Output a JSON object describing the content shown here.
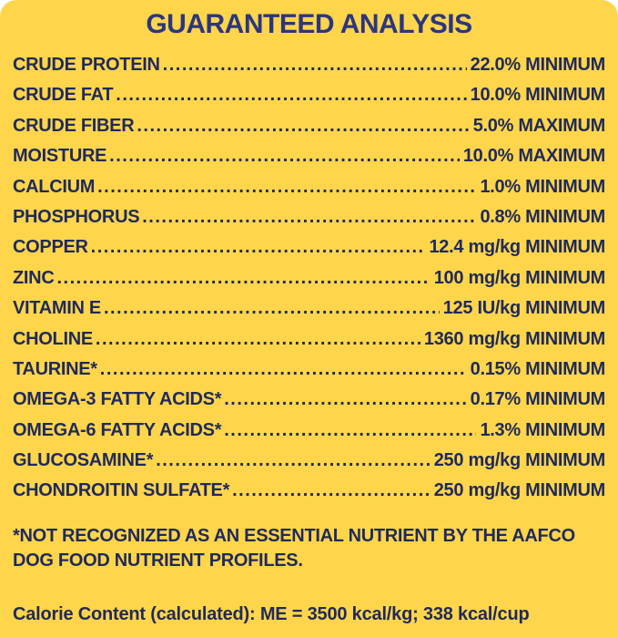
{
  "panel": {
    "title": "GUARANTEED ANALYSIS",
    "rows": [
      {
        "label": "CRUDE PROTEIN",
        "value": "22.0% MINIMUM"
      },
      {
        "label": "CRUDE FAT",
        "value": "10.0% MINIMUM"
      },
      {
        "label": "CRUDE FIBER",
        "value": "5.0% MAXIMUM"
      },
      {
        "label": "MOISTURE",
        "value": "10.0% MAXIMUM"
      },
      {
        "label": "CALCIUM",
        "value": "1.0% MINIMUM"
      },
      {
        "label": "PHOSPHORUS",
        "value": "0.8% MINIMUM"
      },
      {
        "label": "COPPER",
        "value": "12.4 mg/kg MINIMUM"
      },
      {
        "label": "ZINC",
        "value": "100 mg/kg MINIMUM"
      },
      {
        "label": "VITAMIN E",
        "value": "125 IU/kg MINIMUM"
      },
      {
        "label": "CHOLINE",
        "value": "1360 mg/kg MINIMUM"
      },
      {
        "label": "TAURINE*",
        "value": "0.15% MINIMUM"
      },
      {
        "label": "OMEGA-3 FATTY ACIDS*",
        "value": "0.17% MINIMUM"
      },
      {
        "label": "OMEGA-6 FATTY ACIDS*",
        "value": "1.3% MINIMUM"
      },
      {
        "label": "GLUCOSAMINE*",
        "value": "250 mg/kg MINIMUM"
      },
      {
        "label": "CHONDROITIN SULFATE*",
        "value": "250 mg/kg MINIMUM"
      }
    ],
    "footnote": "*NOT RECOGNIZED AS AN ESSENTIAL NUTRIENT BY THE AAFCO DOG FOOD NUTRIENT PROFILES.",
    "calorie": {
      "label": "Calorie Content (calculated):",
      "value": "ME = 3500 kcal/kg; 338 kcal/cup"
    },
    "colors": {
      "background": "#FFD54C",
      "text": "#1F2A5A",
      "title": "#2B3680"
    }
  }
}
